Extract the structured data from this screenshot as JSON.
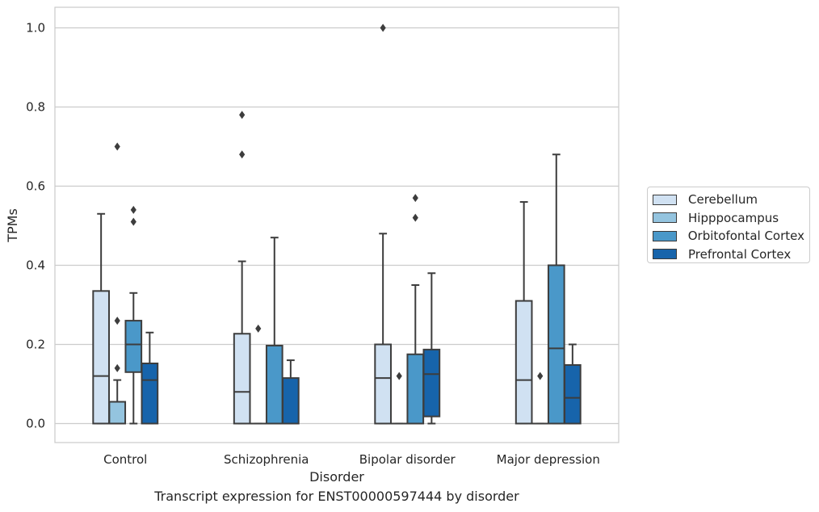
{
  "chart_data": {
    "type": "box",
    "caption": "Transcript expression for ENST00000597444 by disorder",
    "xlabel": "Disorder",
    "ylabel": "TPMs",
    "ylim": [
      -0.048,
      1.052
    ],
    "yticks": [
      "0.0",
      "0.2",
      "0.4",
      "0.6",
      "0.8",
      "1.0"
    ],
    "grid": "horizontal",
    "legend_position": "right",
    "categories": [
      "Control",
      "Schizophrenia",
      "Bipolar disorder",
      "Major depression"
    ],
    "series": [
      {
        "name": "Cerebellum",
        "color": "#d0e1f2",
        "boxes": [
          {
            "whislo": 0,
            "q1": 0,
            "med": 0.12,
            "q3": 0.335,
            "whishi": 0.53,
            "fliers": []
          },
          {
            "whislo": 0,
            "q1": 0,
            "med": 0.08,
            "q3": 0.227,
            "whishi": 0.41,
            "fliers": [
              0.68,
              0.78
            ]
          },
          {
            "whislo": 0,
            "q1": 0,
            "med": 0.115,
            "q3": 0.2,
            "whishi": 0.48,
            "fliers": [
              1.0
            ]
          },
          {
            "whislo": 0,
            "q1": 0,
            "med": 0.11,
            "q3": 0.31,
            "whishi": 0.56,
            "fliers": []
          }
        ]
      },
      {
        "name": "Hipppocampus",
        "color": "#94c4df",
        "boxes": [
          {
            "whislo": 0,
            "q1": 0,
            "med": 0,
            "q3": 0.055,
            "whishi": 0.11,
            "fliers": [
              0.14,
              0.26,
              0.7
            ]
          },
          {
            "whislo": 0,
            "q1": 0,
            "med": 0,
            "q3": 0,
            "whishi": 0,
            "fliers": [
              0.24
            ]
          },
          {
            "whislo": 0,
            "q1": 0,
            "med": 0,
            "q3": 0,
            "whishi": 0,
            "fliers": [
              0.12
            ]
          },
          {
            "whislo": 0,
            "q1": 0,
            "med": 0,
            "q3": 0,
            "whishi": 0,
            "fliers": [
              0.12
            ]
          }
        ]
      },
      {
        "name": "Orbitofontal Cortex",
        "color": "#4a98c9",
        "boxes": [
          {
            "whislo": 0,
            "q1": 0.13,
            "med": 0.2,
            "q3": 0.26,
            "whishi": 0.33,
            "fliers": [
              0.51,
              0.54
            ]
          },
          {
            "whislo": 0,
            "q1": 0,
            "med": 0,
            "q3": 0.197,
            "whishi": 0.47,
            "fliers": []
          },
          {
            "whislo": 0,
            "q1": 0,
            "med": 0,
            "q3": 0.175,
            "whishi": 0.35,
            "fliers": [
              0.52,
              0.57
            ]
          },
          {
            "whislo": 0,
            "q1": 0,
            "med": 0.19,
            "q3": 0.4,
            "whishi": 0.68,
            "fliers": []
          }
        ]
      },
      {
        "name": "Prefrontal Cortex",
        "color": "#1764ab",
        "boxes": [
          {
            "whislo": 0,
            "q1": 0,
            "med": 0.11,
            "q3": 0.152,
            "whishi": 0.23,
            "fliers": []
          },
          {
            "whislo": 0,
            "q1": 0,
            "med": 0,
            "q3": 0.115,
            "whishi": 0.16,
            "fliers": []
          },
          {
            "whislo": 0,
            "q1": 0.018,
            "med": 0.125,
            "q3": 0.187,
            "whishi": 0.38,
            "fliers": []
          },
          {
            "whislo": 0,
            "q1": 0,
            "med": 0.065,
            "q3": 0.148,
            "whishi": 0.2,
            "fliers": []
          }
        ]
      }
    ]
  }
}
